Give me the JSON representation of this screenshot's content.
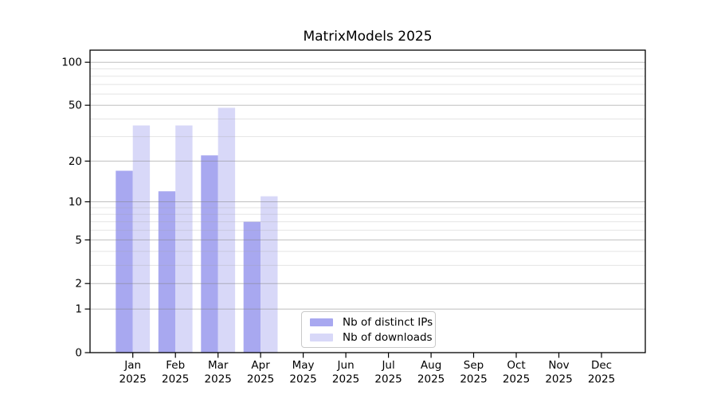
{
  "chart_data": {
    "type": "bar",
    "title": "MatrixModels 2025",
    "categories": [
      "Jan",
      "Feb",
      "Mar",
      "Apr",
      "May",
      "Jun",
      "Jul",
      "Aug",
      "Sep",
      "Oct",
      "Nov",
      "Dec"
    ],
    "category_year": "2025",
    "series": [
      {
        "name": "Nb of distinct IPs",
        "color": "#a8a8f0",
        "values": [
          17,
          12,
          22,
          7,
          0,
          0,
          0,
          0,
          0,
          0,
          0,
          0
        ]
      },
      {
        "name": "Nb of downloads",
        "color": "#d8d8f8",
        "values": [
          36,
          36,
          48,
          11,
          0,
          0,
          0,
          0,
          0,
          0,
          0,
          0
        ]
      }
    ],
    "y_scale": "log10(1+value)",
    "y_major_ticks": [
      0,
      1,
      2,
      5,
      10,
      20,
      50,
      100
    ],
    "y_minor_gridlines": [
      3,
      4,
      6,
      7,
      8,
      9,
      30,
      40,
      60,
      70,
      80,
      90
    ],
    "ylim": [
      0,
      121
    ],
    "grid": true,
    "legend_position": "lower center",
    "colors": {
      "axis": "#000000",
      "major_grid": "#808080",
      "minor_grid": "#a0a0a0",
      "background": "#ffffff"
    }
  }
}
